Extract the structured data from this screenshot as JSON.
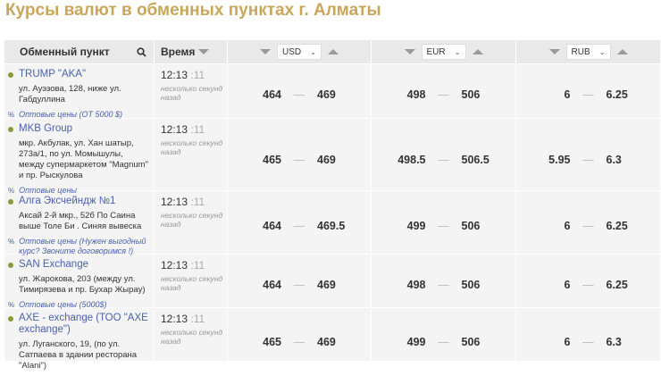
{
  "title": "Курсы валют в обменных пунктах г. Алматы",
  "header": {
    "name": "Обменный пункт",
    "time": "Время",
    "currencies": [
      "USD",
      "EUR",
      "RUB"
    ]
  },
  "colors": {
    "title": "#c9a75a",
    "link": "#4a60b0",
    "status_dot": "#8a9a3a"
  },
  "rows": [
    {
      "name": "TRUMP \"AKA\"",
      "address": "ул. Ауэзова, 128, ниже ул. Габдуллина",
      "wholesale": "Оптовые цены (ОТ 5000 $)",
      "time": "12:13",
      "sec": ":11",
      "ago": "несколько секунд назад",
      "rates": [
        {
          "buy": "464",
          "sell": "469"
        },
        {
          "buy": "498",
          "sell": "506"
        },
        {
          "buy": "6",
          "sell": "6.25"
        }
      ]
    },
    {
      "name": "MKB Group",
      "address": "мкр. Акбулак, ул. Хан шатыр, 273а/1, по ул. Момышулы, между супермаркетом \"Magnum\" и пр. Рыскулова",
      "wholesale": "Оптовые цены",
      "time": "12:13",
      "sec": ":11",
      "ago": "несколько секунд назад",
      "rates": [
        {
          "buy": "465",
          "sell": "469"
        },
        {
          "buy": "498.5",
          "sell": "506.5"
        },
        {
          "buy": "5.95",
          "sell": "6.3"
        }
      ]
    },
    {
      "name": "Алга Эксчейндж №1",
      "address": "Аксай 2-й мкр., 52б По Саина выше Толе Би . Синяя вывеска",
      "wholesale": "Оптовые цены (Нужен выгодный курс? Звоните договоримся !)",
      "time": "12:13",
      "sec": ":11",
      "ago": "несколько секунд назад",
      "rates": [
        {
          "buy": "464",
          "sell": "469.5"
        },
        {
          "buy": "499",
          "sell": "506"
        },
        {
          "buy": "6",
          "sell": "6.25"
        }
      ]
    },
    {
      "name": "SAN Exchange",
      "address": "ул. Жарокова, 203 (между ул. Тимирязева и пр. Бухар Жырау)",
      "wholesale": "Оптовые цены (5000$)",
      "time": "12:13",
      "sec": ":11",
      "ago": "несколько секунд назад",
      "rates": [
        {
          "buy": "464",
          "sell": "469"
        },
        {
          "buy": "498",
          "sell": "506"
        },
        {
          "buy": "6",
          "sell": "6.25"
        }
      ]
    },
    {
      "name": "AXE - exchange (ТОО \"AXE exchange\")",
      "address": "ул. Луганского, 19, (по ул. Сатпаева в здании ресторана \"Alani\")",
      "wholesale": "",
      "time": "12:13",
      "sec": ":11",
      "ago": "несколько секунд назад",
      "rates": [
        {
          "buy": "465",
          "sell": "469"
        },
        {
          "buy": "499",
          "sell": "506"
        },
        {
          "buy": "6",
          "sell": "6.3"
        }
      ]
    }
  ]
}
